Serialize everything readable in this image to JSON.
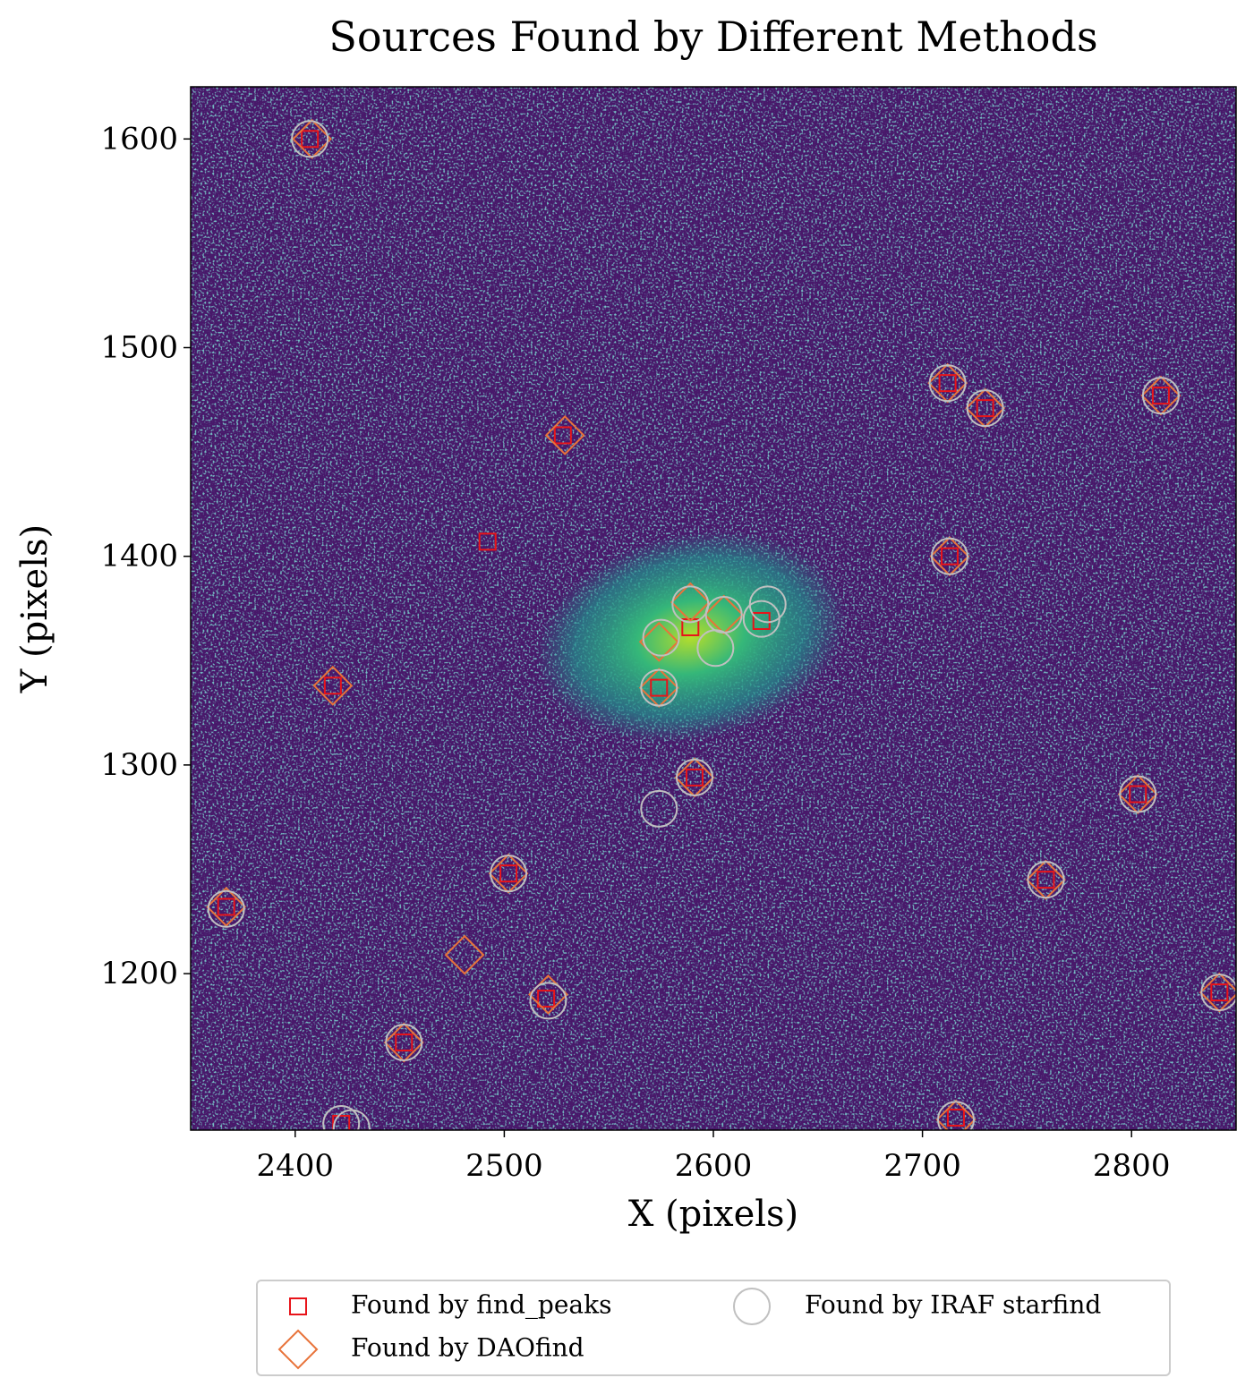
{
  "chart_data": {
    "type": "scatter",
    "title": "Sources Found by Different Methods",
    "x_label": "X (pixels)",
    "y_label": "Y (pixels)",
    "xlim": [
      2350,
      2850
    ],
    "ylim": [
      1125,
      1625
    ],
    "xticks": [
      2400,
      2500,
      2600,
      2700,
      2800
    ],
    "yticks": [
      1200,
      1300,
      1400,
      1500,
      1600
    ],
    "legend": "lower center",
    "series": [
      {
        "name": "Found by find_peaks",
        "color": "#e8141a",
        "marker": "square",
        "x": [
          2407,
          2492,
          2528,
          2418,
          2367,
          2502,
          2452,
          2520,
          2422,
          2574,
          2589,
          2591,
          2623,
          2712,
          2730,
          2814,
          2713,
          2716,
          2759,
          2803,
          2842
        ],
        "values": [
          1600,
          1407,
          1458,
          1338,
          1232,
          1248,
          1167,
          1188,
          1128,
          1337,
          1366,
          1294,
          1369,
          1483,
          1471,
          1477,
          1400,
          1131,
          1245,
          1286,
          1191
        ]
      },
      {
        "name": "Found by DAOfind",
        "color": "#e8733a",
        "marker": "diamond",
        "x": [
          2408,
          2529,
          2418,
          2367,
          2502,
          2481,
          2452,
          2521,
          2574,
          2589,
          2605,
          2574,
          2591,
          2712,
          2730,
          2814,
          2713,
          2716,
          2759,
          2803,
          2842
        ],
        "values": [
          1600,
          1458,
          1338,
          1232,
          1248,
          1209,
          1167,
          1190,
          1359,
          1378,
          1372,
          1337,
          1294,
          1483,
          1471,
          1477,
          1400,
          1130,
          1245,
          1286,
          1191
        ]
      },
      {
        "name": "Found by IRAF starfind",
        "color": "#c0c0c0",
        "marker": "circle",
        "x": [
          2407,
          2367,
          2502,
          2452,
          2521,
          2422,
          2427,
          2574,
          2589,
          2605,
          2626,
          2623,
          2601,
          2575,
          2591,
          2574,
          2712,
          2730,
          2814,
          2713,
          2716,
          2759,
          2803,
          2842
        ],
        "values": [
          1600,
          1231,
          1248,
          1167,
          1187,
          1128,
          1126,
          1337,
          1377,
          1372,
          1377,
          1370,
          1356,
          1361,
          1294,
          1279,
          1483,
          1471,
          1477,
          1400,
          1130,
          1245,
          1286,
          1191
        ]
      }
    ]
  }
}
